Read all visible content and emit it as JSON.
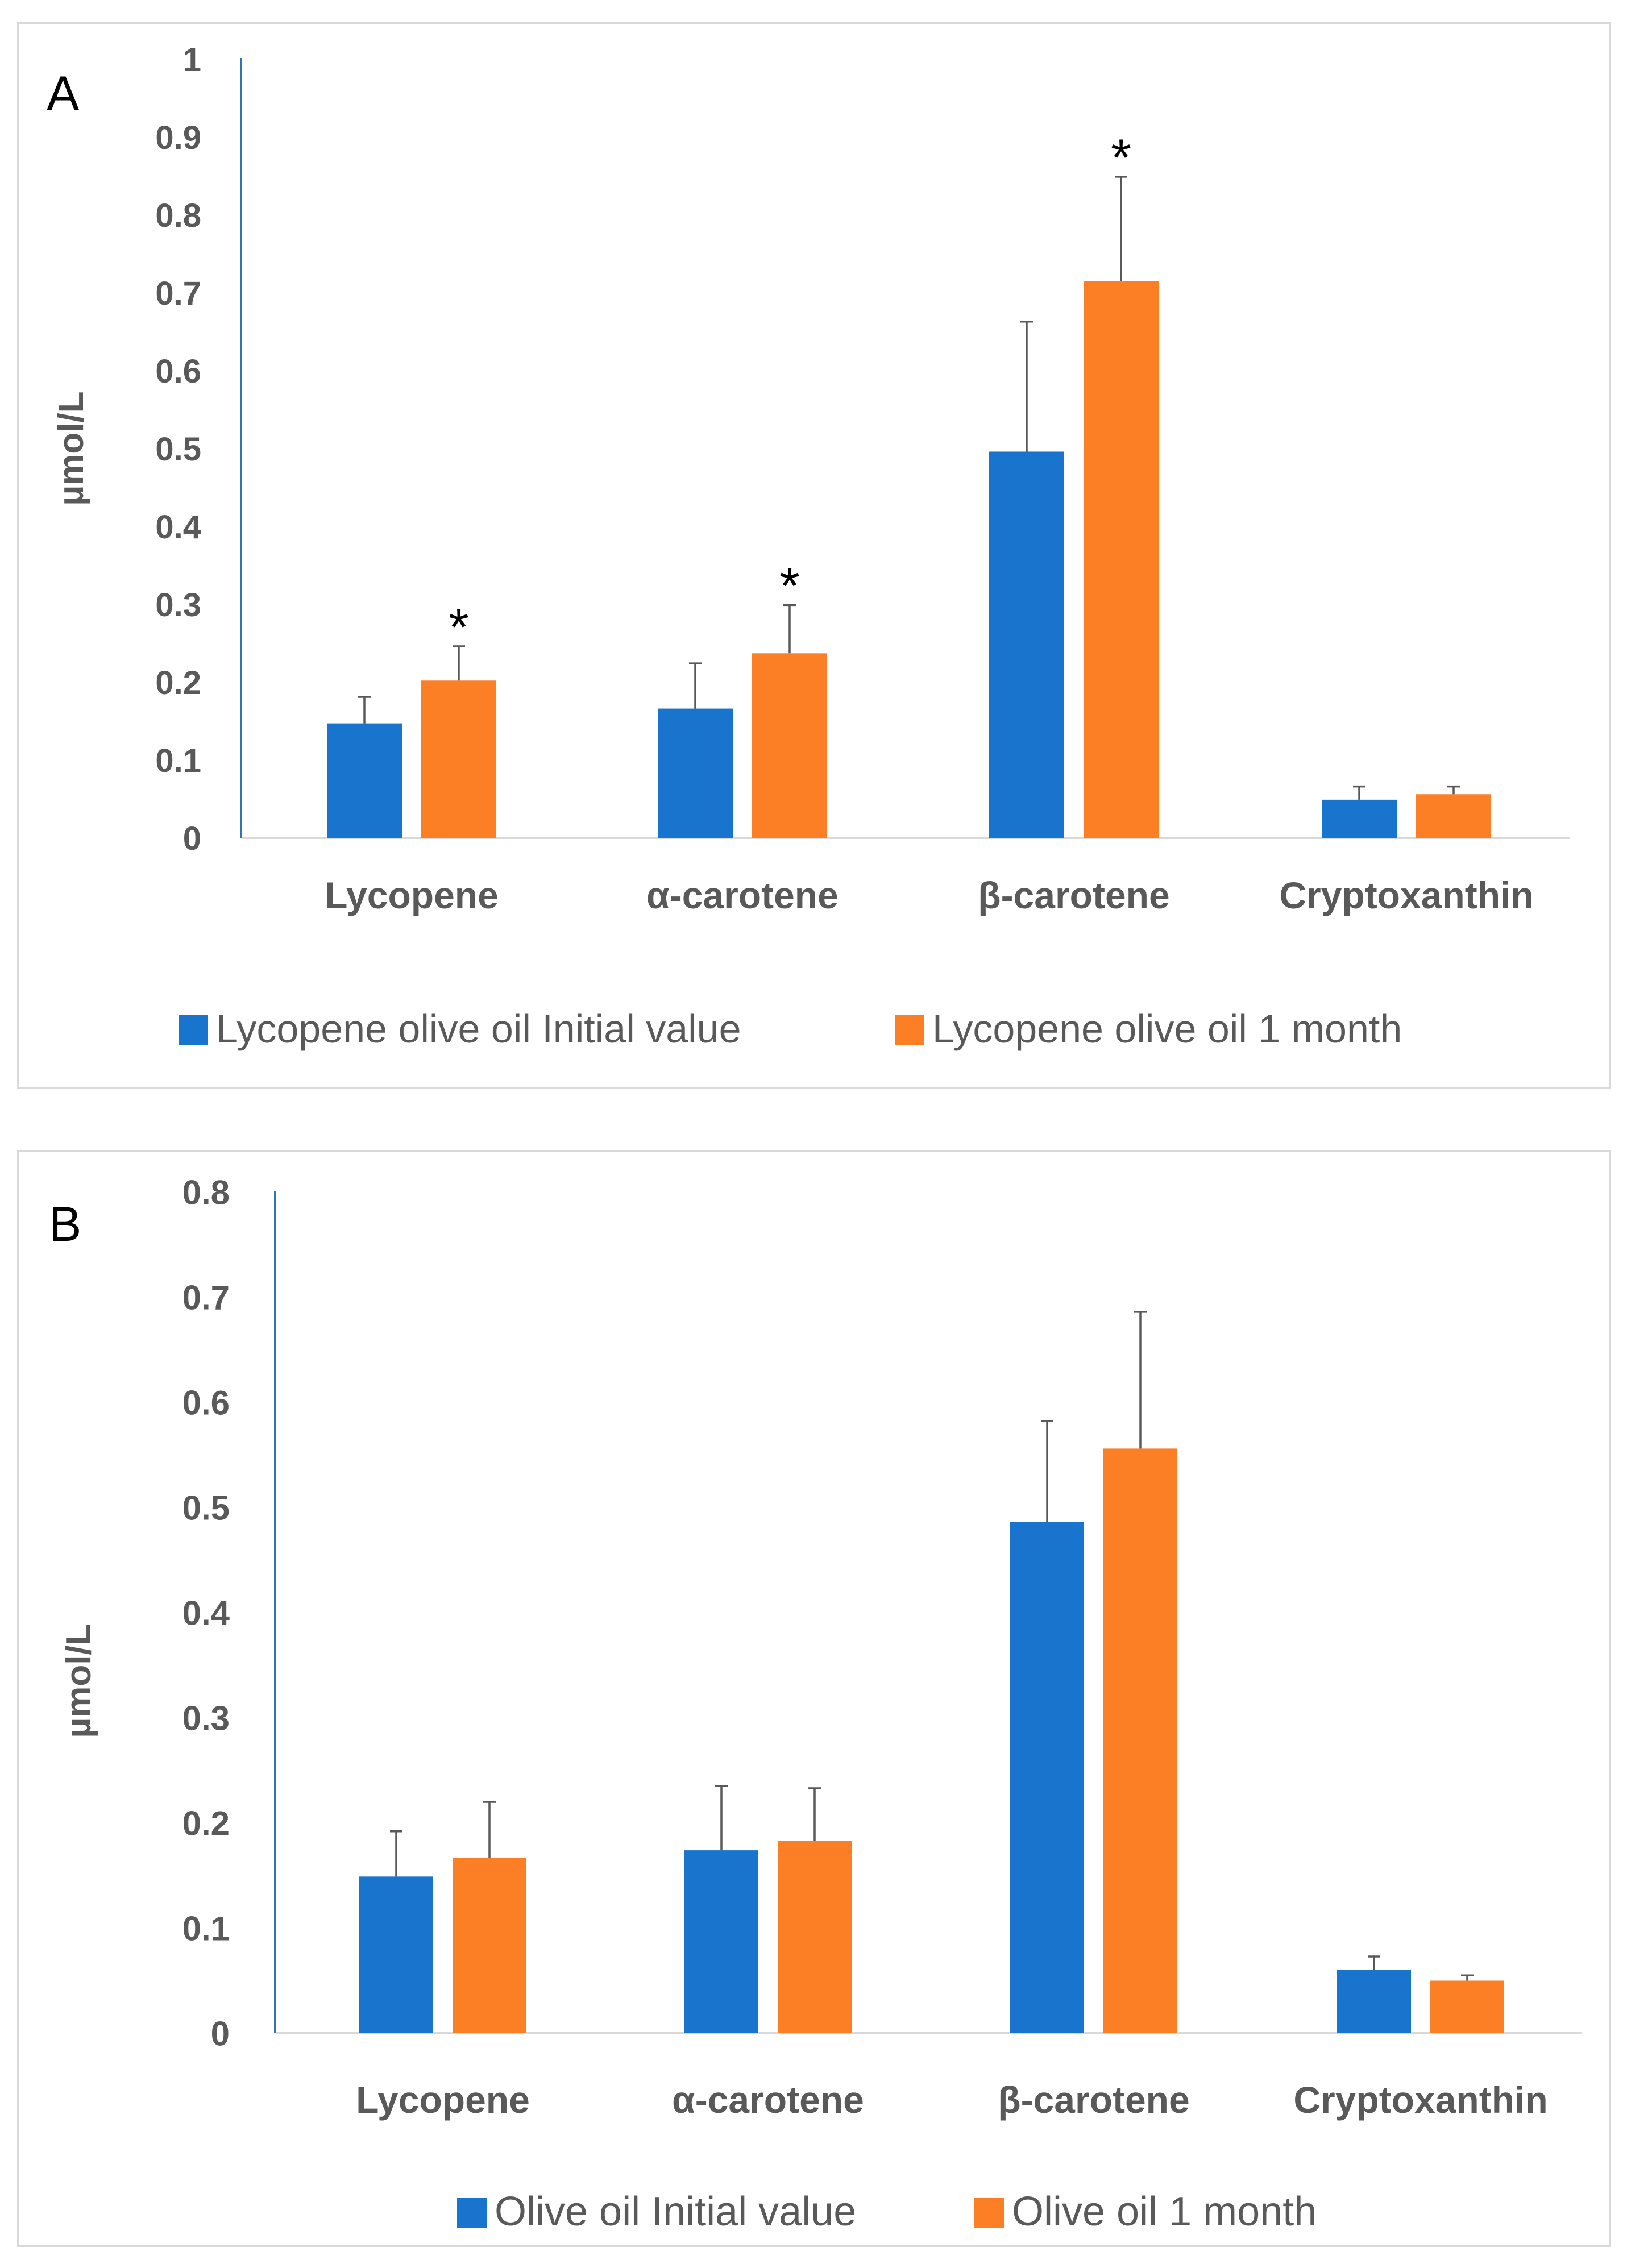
{
  "chart_data": [
    {
      "type": "bar",
      "panel_label": "A",
      "ylabel": "µmol/L",
      "xlabel": "",
      "ylim": [
        0,
        1
      ],
      "yticks": [
        "0",
        "0.1",
        "0.2",
        "0.3",
        "0.4",
        "0.5",
        "0.6",
        "0.7",
        "0.8",
        "0.9",
        "1"
      ],
      "categories": [
        "Lycopene",
        "α-carotene",
        "β-carotene",
        "Cryptoxanthin"
      ],
      "series": [
        {
          "name": "Lycopene olive oil Initial value",
          "color": "#1874cd",
          "values": [
            0.147,
            0.166,
            0.496,
            0.049
          ],
          "errors": [
            0.034,
            0.058,
            0.167,
            0.017
          ]
        },
        {
          "name": "Lycopene olive oil 1 month",
          "color": "#fc7f26",
          "values": [
            0.202,
            0.237,
            0.715,
            0.056
          ],
          "errors": [
            0.044,
            0.062,
            0.134,
            0.01
          ]
        }
      ],
      "significance": [
        {
          "category_index": 0,
          "series_index": 1,
          "text": "*"
        },
        {
          "category_index": 1,
          "series_index": 1,
          "text": "*"
        },
        {
          "category_index": 2,
          "series_index": 1,
          "text": "*"
        }
      ],
      "legend_position": "bottom",
      "grid": false
    },
    {
      "type": "bar",
      "panel_label": "B",
      "ylabel": "µmol/L",
      "xlabel": "",
      "ylim": [
        0,
        0.8
      ],
      "yticks": [
        "0",
        "0.1",
        "0.2",
        "0.3",
        "0.4",
        "0.5",
        "0.6",
        "0.7",
        "0.8"
      ],
      "categories": [
        "Lycopene",
        "α-carotene",
        "β-carotene",
        "Cryptoxanthin"
      ],
      "series": [
        {
          "name": "Olive oil Initial value",
          "color": "#1874cd",
          "values": [
            0.149,
            0.174,
            0.486,
            0.06
          ],
          "errors": [
            0.043,
            0.061,
            0.096,
            0.013
          ]
        },
        {
          "name": "Olive oil 1 month",
          "color": "#fc7f26",
          "values": [
            0.167,
            0.183,
            0.556,
            0.05
          ],
          "errors": [
            0.053,
            0.05,
            0.13,
            0.005
          ]
        }
      ],
      "significance": [],
      "legend_position": "bottom",
      "grid": false
    }
  ]
}
